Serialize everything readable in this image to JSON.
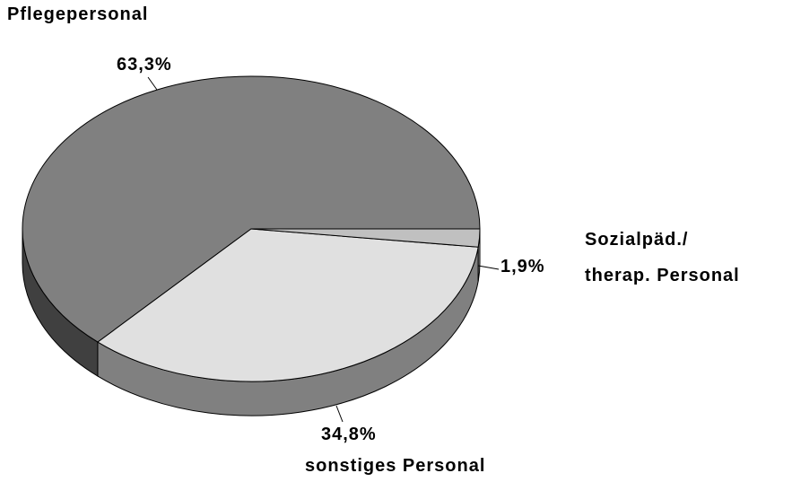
{
  "chart_data": {
    "type": "pie",
    "categories": [
      "Pflegepersonal",
      "sonstiges Personal",
      "Sozialpäd./ therap. Personal"
    ],
    "values": [
      63.3,
      34.8,
      1.9
    ],
    "value_labels": [
      "63,3%",
      "34,8%",
      "1,9%"
    ],
    "colors": [
      "#808080",
      "#e0e0e0",
      "#c0c0c0"
    ],
    "side_colors": [
      "#404040",
      "#808080",
      "#a0a0a0"
    ]
  }
}
